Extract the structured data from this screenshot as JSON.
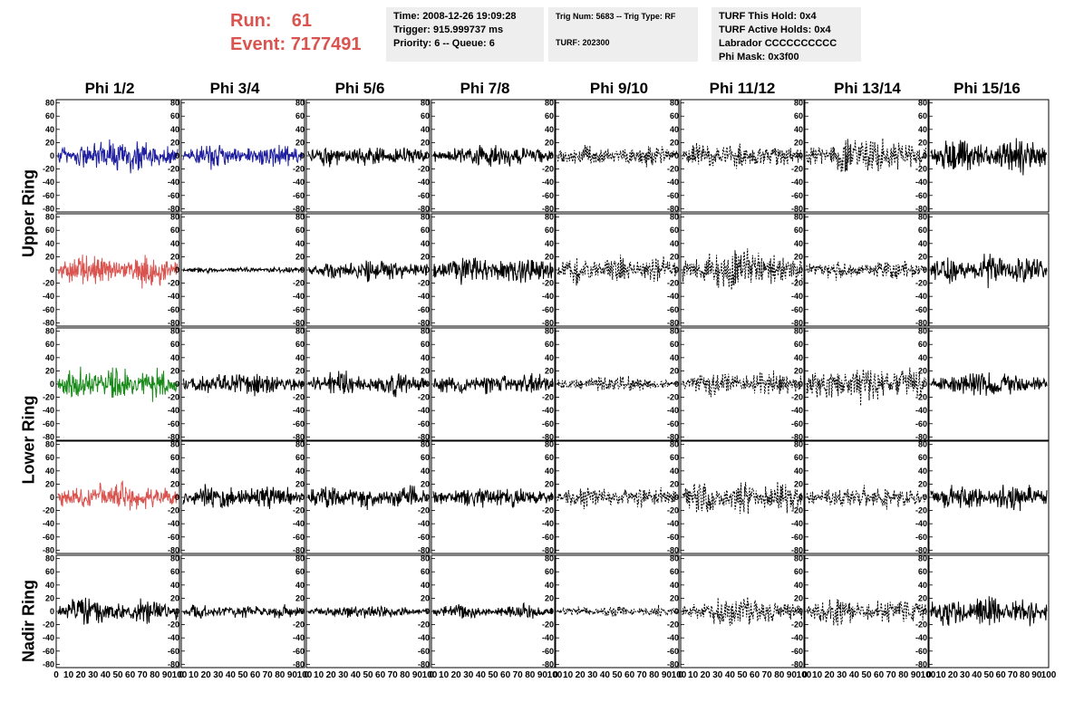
{
  "run_info": {
    "run_label": "Run:",
    "run_value": "61",
    "event_label": "Event:",
    "event_value": "7177491"
  },
  "info_boxes": {
    "box1": [
      "Time: 2008-12-26 19:09:28",
      "Trigger: 915.999737 ms",
      "Priority: 6 -- Queue: 6"
    ],
    "box2": [
      "Trig Num: 5683 -- Trig Type: RF",
      "TURF: 202300"
    ],
    "box3": [
      "TURF This Hold: 0x4",
      "TURF Active Holds: 0x4",
      "Labrador CCCCCCCCCC",
      "Phi Mask: 0x3f00"
    ]
  },
  "colors": {
    "red": "#d9534f",
    "blue": "#1f1fa0",
    "green": "#1a8a1a",
    "black": "#000000",
    "box_bg": "#eeeeee"
  },
  "chart_data": {
    "type": "line",
    "columns": [
      "Phi 1/2",
      "Phi 3/4",
      "Phi 5/6",
      "Phi 7/8",
      "Phi 9/10",
      "Phi 11/12",
      "Phi 13/14",
      "Phi 15/16"
    ],
    "ring_labels": [
      "Upper Ring",
      "Lower Ring",
      "Nadir Ring"
    ],
    "ylim": [
      -85,
      85
    ],
    "xlim": [
      0,
      100
    ],
    "y_ticks": [
      "80",
      "60",
      "40",
      "20",
      "0",
      "-20",
      "-40",
      "-60",
      "-80"
    ],
    "x_ticks": [
      "0",
      "10",
      "20",
      "30",
      "40",
      "50",
      "60",
      "70",
      "80",
      "90",
      "100"
    ],
    "panel_styles": [
      [
        "blue",
        "blue",
        "solid",
        "solid",
        "dashed",
        "dashed",
        "dashed",
        "solid"
      ],
      [
        "red",
        "solid",
        "solid",
        "solid",
        "dashed",
        "dashed",
        "dashed",
        "solid"
      ],
      [
        "green",
        "solid",
        "solid",
        "solid",
        "dashed",
        "dashed",
        "dashed",
        "solid"
      ],
      [
        "red",
        "solid",
        "solid",
        "solid",
        "dashed",
        "dashed",
        "dashed",
        "solid"
      ],
      [
        "solid",
        "solid",
        "solid",
        "solid",
        "dashed",
        "dashed",
        "dashed",
        "solid"
      ]
    ],
    "panel_amplitude": [
      [
        22,
        16,
        14,
        14,
        14,
        18,
        24,
        24
      ],
      [
        22,
        4,
        14,
        20,
        18,
        28,
        14,
        20
      ],
      [
        22,
        14,
        16,
        14,
        10,
        18,
        26,
        16
      ],
      [
        20,
        16,
        16,
        14,
        14,
        22,
        16,
        18
      ],
      [
        18,
        10,
        8,
        10,
        8,
        18,
        18,
        20
      ]
    ]
  }
}
